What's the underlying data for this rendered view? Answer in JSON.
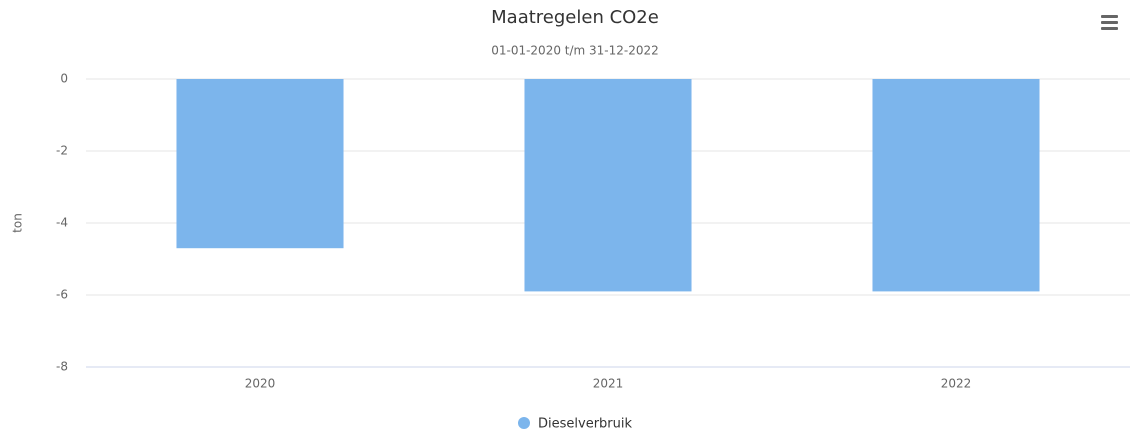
{
  "chart_data": {
    "type": "bar",
    "title": "Maatregelen CO2e",
    "subtitle": "01-01-2020 t/m 31-12-2022",
    "y_label": "ton",
    "categories": [
      "2020",
      "2021",
      "2022"
    ],
    "series": [
      {
        "name": "Dieselverbruik",
        "color": "#7cb5ec",
        "values": [
          -4.7,
          -5.9,
          -5.9
        ]
      }
    ],
    "ylim": [
      -8,
      0
    ],
    "yticks": [
      0,
      -2,
      -4,
      -6,
      -8
    ],
    "grid": true,
    "legend": "bottom"
  }
}
